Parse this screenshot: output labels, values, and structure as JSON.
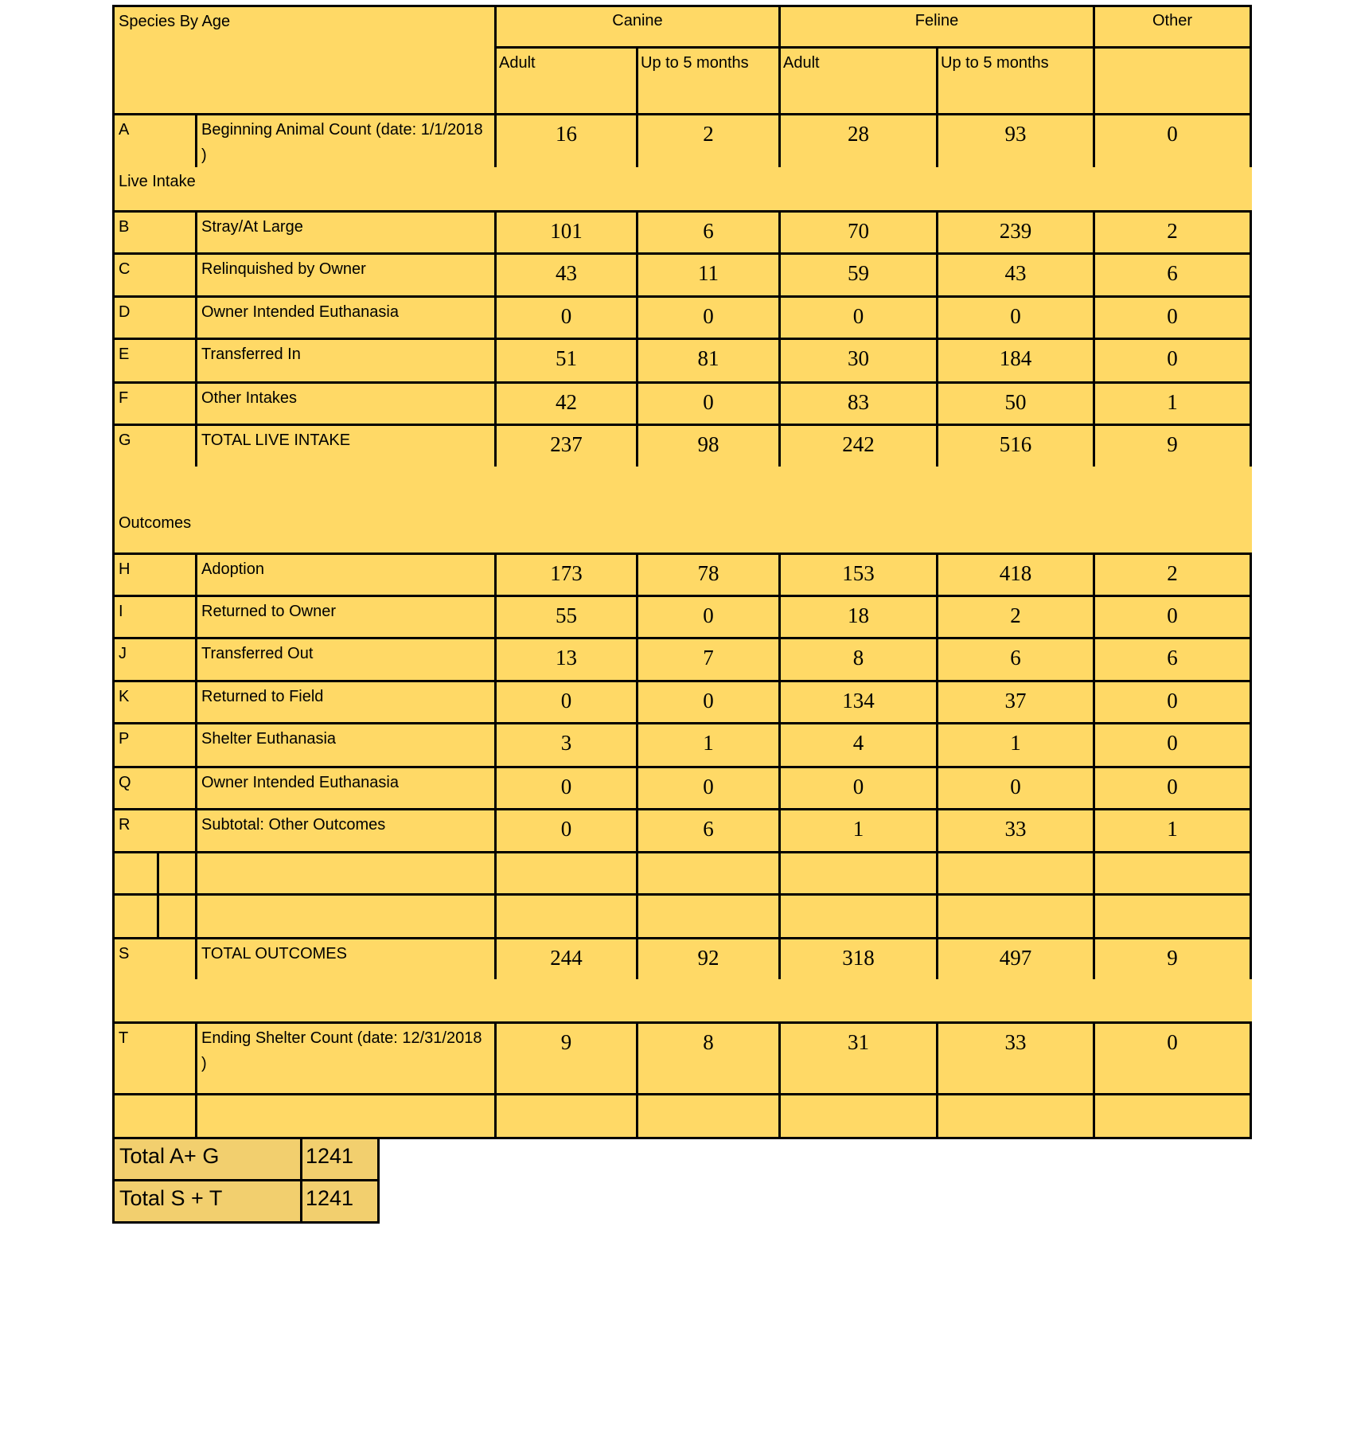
{
  "header": {
    "title": "Species By Age",
    "species": [
      "Canine",
      "Feline",
      "Other"
    ],
    "ages": [
      "Adult",
      "Up to 5 months",
      "Adult",
      "Up to 5 months",
      ""
    ]
  },
  "rows": [
    {
      "code": "A",
      "label": "Beginning Animal Count (date: 1/1/2018 )",
      "values": [
        "16",
        "2",
        "28",
        "93",
        "0"
      ]
    },
    {
      "section": "Live Intake"
    },
    {
      "code": "B",
      "label": "Stray/At Large",
      "values": [
        "101",
        "6",
        "70",
        "239",
        "2"
      ]
    },
    {
      "code": "C",
      "label": "Relinquished by Owner",
      "values": [
        "43",
        "11",
        "59",
        "43",
        "6"
      ]
    },
    {
      "code": "D",
      "label": "Owner Intended Euthanasia",
      "values": [
        "0",
        "0",
        "0",
        "0",
        "0"
      ]
    },
    {
      "code": "E",
      "label": "Transferred In",
      "values": [
        "51",
        "81",
        "30",
        "184",
        "0"
      ]
    },
    {
      "code": "F",
      "label": "Other Intakes",
      "values": [
        "42",
        "0",
        "83",
        "50",
        "1"
      ]
    },
    {
      "code": "G",
      "label": "TOTAL LIVE INTAKE",
      "values": [
        "237",
        "98",
        "242",
        "516",
        "9"
      ]
    },
    {
      "section": ""
    },
    {
      "section": "Outcomes"
    },
    {
      "code": "H",
      "label": "Adoption",
      "values": [
        "173",
        "78",
        "153",
        "418",
        "2"
      ]
    },
    {
      "code": "I",
      "label": "Returned to Owner",
      "values": [
        "55",
        "0",
        "18",
        "2",
        "0"
      ]
    },
    {
      "code": "J",
      "label": "Transferred Out",
      "values": [
        "13",
        "7",
        "8",
        "6",
        "6"
      ]
    },
    {
      "code": "K",
      "label": "Returned to Field",
      "values": [
        "0",
        "0",
        "134",
        "37",
        "0"
      ]
    },
    {
      "code": "P",
      "label": "Shelter Euthanasia",
      "values": [
        "3",
        "1",
        "4",
        "1",
        "0"
      ]
    },
    {
      "code": "Q",
      "label": "Owner Intended Euthanasia",
      "values": [
        "0",
        "0",
        "0",
        "0",
        "0"
      ]
    },
    {
      "code": "R",
      "label": "Subtotal: Other Outcomes",
      "values": [
        "0",
        "6",
        "1",
        "33",
        "1"
      ]
    },
    {
      "code": "",
      "label": "",
      "values": [
        "",
        "",
        "",
        "",
        ""
      ],
      "split": true
    },
    {
      "code": "",
      "label": "",
      "values": [
        "",
        "",
        "",
        "",
        ""
      ],
      "split": true
    },
    {
      "code": "S",
      "label": "TOTAL OUTCOMES",
      "values": [
        "244",
        "92",
        "318",
        "497",
        "9"
      ]
    },
    {
      "section": ""
    },
    {
      "code": "T",
      "label": "Ending Shelter Count (date: 12/31/2018 )",
      "values": [
        "9",
        "8",
        "31",
        "33",
        "0"
      ]
    },
    {
      "code": "",
      "label": "",
      "values": [
        "",
        "",
        "",
        "",
        ""
      ]
    }
  ],
  "totals": [
    {
      "label": "Total A+ G",
      "value": "1241"
    },
    {
      "label": "Total S + T",
      "value": "1241"
    }
  ],
  "colors": {
    "fill": "#FFD966",
    "totals_fill": "#F2CF6E",
    "border": "#000000"
  }
}
